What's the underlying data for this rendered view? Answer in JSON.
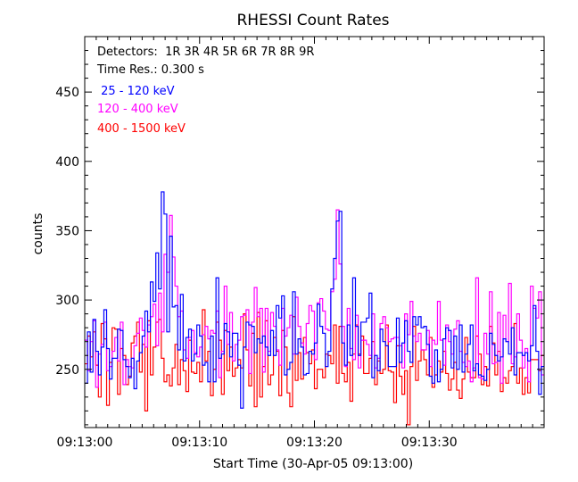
{
  "chart_data": {
    "type": "line",
    "title": "RHESSI Count Rates",
    "xlabel": "Start Time (30-Apr-05 09:13:00)",
    "ylabel": "counts",
    "x_tick_labels": [
      "09:13:00",
      "09:13:10",
      "09:13:20",
      "09:13:30"
    ],
    "y_tick_labels": [
      "250",
      "300",
      "350",
      "400",
      "450"
    ],
    "y_ticks": [
      250,
      300,
      350,
      400,
      450
    ],
    "xlim_seconds": [
      0,
      40
    ],
    "ylim": [
      208,
      490
    ],
    "annotations": [
      "Detectors:  1R 3R 4R 5R 6R 7R 8R 9R",
      "Time Res.: 0.300 s"
    ],
    "series": [
      {
        "name": " 25 - 120 keV",
        "color": "#0000ff",
        "values": [
          240,
          277,
          248,
          286,
          263,
          246,
          266,
          293,
          265,
          243,
          258,
          258,
          279,
          278,
          257,
          252,
          244,
          258,
          236,
          256,
          262,
          274,
          292,
          277,
          313,
          299,
          334,
          308,
          378,
          362,
          277,
          346,
          295,
          296,
          264,
          304,
          256,
          273,
          279,
          256,
          261,
          282,
          274,
          253,
          255,
          241,
          274,
          241,
          316,
          258,
          261,
          283,
          277,
          259,
          276,
          276,
          253,
          222,
          266,
          284,
          282,
          281,
          262,
          272,
          269,
          274,
          266,
          260,
          278,
          260,
          296,
          287,
          303,
          246,
          250,
          255,
          306,
          261,
          272,
          266,
          246,
          247,
          263,
          261,
          269,
          297,
          281,
          276,
          252,
          263,
          308,
          330,
          357,
          364,
          269,
          253,
          282,
          260,
          316,
          281,
          260,
          284,
          284,
          287,
          305,
          244,
          260,
          249,
          279,
          270,
          267,
          252,
          252,
          252,
          287,
          255,
          269,
          285,
          263,
          255,
          288,
          282,
          288,
          280,
          281,
          268,
          245,
          240,
          264,
          241,
          250,
          272,
          280,
          278,
          251,
          274,
          250,
          282,
          248,
          261,
          268,
          282,
          249,
          254,
          246,
          245,
          242,
          250,
          276,
          268,
          260,
          256,
          259,
          272,
          270,
          261,
          280,
          246,
          262,
          262,
          260,
          262,
          256,
          267,
          296,
          263,
          232,
          252
        ]
      },
      {
        "name": "120 - 400 keV",
        "color": "#ff00ff",
        "values": [
          271,
          249,
          270,
          285,
          237,
          261,
          268,
          284,
          249,
          252,
          263,
          273,
          256,
          284,
          239,
          257,
          252,
          251,
          267,
          276,
          287,
          278,
          266,
          282,
          288,
          297,
          267,
          305,
          277,
          333,
          320,
          361,
          331,
          310,
          288,
          292,
          264,
          258,
          273,
          278,
          262,
          259,
          266,
          275,
          281,
          272,
          278,
          276,
          292,
          244,
          263,
          310,
          268,
          291,
          256,
          268,
          271,
          288,
          289,
          293,
          247,
          284,
          309,
          288,
          294,
          248,
          294,
          263,
          291,
          281,
          264,
          253,
          294,
          274,
          280,
          289,
          261,
          302,
          281,
          269,
          261,
          283,
          296,
          292,
          257,
          298,
          301,
          292,
          279,
          278,
          306,
          315,
          365,
          326,
          281,
          252,
          294,
          265,
          257,
          289,
          251,
          271,
          271,
          268,
          260,
          290,
          251,
          258,
          283,
          288,
          280,
          270,
          272,
          273,
          273,
          267,
          251,
          290,
          275,
          299,
          274,
          270,
          276,
          264,
          264,
          278,
          252,
          271,
          268,
          299,
          271,
          253,
          282,
          270,
          261,
          279,
          285,
          263,
          255,
          252,
          256,
          241,
          251,
          316,
          244,
          243,
          276,
          261,
          306,
          254,
          255,
          291,
          240,
          289,
          270,
          312,
          254,
          259,
          290,
          271,
          251,
          265,
          241,
          310,
          294,
          287,
          306,
          246
        ]
      },
      {
        "name": "400 - 1500 keV",
        "color": "#ff0000",
        "values": [
          254,
          274,
          259,
          277,
          253,
          230,
          283,
          272,
          224,
          255,
          280,
          279,
          232,
          265,
          260,
          239,
          245,
          269,
          274,
          284,
          248,
          268,
          220,
          285,
          246,
          266,
          284,
          286,
          258,
          241,
          246,
          238,
          251,
          268,
          239,
          257,
          249,
          234,
          271,
          248,
          247,
          255,
          241,
          293,
          256,
          263,
          231,
          250,
          284,
          271,
          232,
          278,
          249,
          266,
          245,
          251,
          257,
          251,
          290,
          264,
          238,
          276,
          223,
          291,
          230,
          252,
          285,
          239,
          246,
          273,
          263,
          231,
          278,
          266,
          233,
          223,
          288,
          242,
          262,
          243,
          273,
          262,
          254,
          264,
          236,
          250,
          250,
          244,
          261,
          260,
          254,
          282,
          240,
          281,
          247,
          241,
          255,
          227,
          261,
          282,
          261,
          274,
          247,
          247,
          258,
          270,
          239,
          256,
          247,
          250,
          282,
          249,
          248,
          226,
          267,
          245,
          232,
          249,
          210,
          252,
          281,
          242,
          256,
          264,
          257,
          246,
          273,
          237,
          246,
          256,
          248,
          263,
          247,
          235,
          243,
          255,
          235,
          229,
          243,
          273,
          248,
          244,
          244,
          274,
          261,
          239,
          252,
          238,
          281,
          269,
          246,
          263,
          234,
          244,
          240,
          249,
          252,
          283,
          240,
          251,
          232,
          244,
          233,
          257,
          257,
          257,
          249,
          260
        ]
      }
    ]
  }
}
